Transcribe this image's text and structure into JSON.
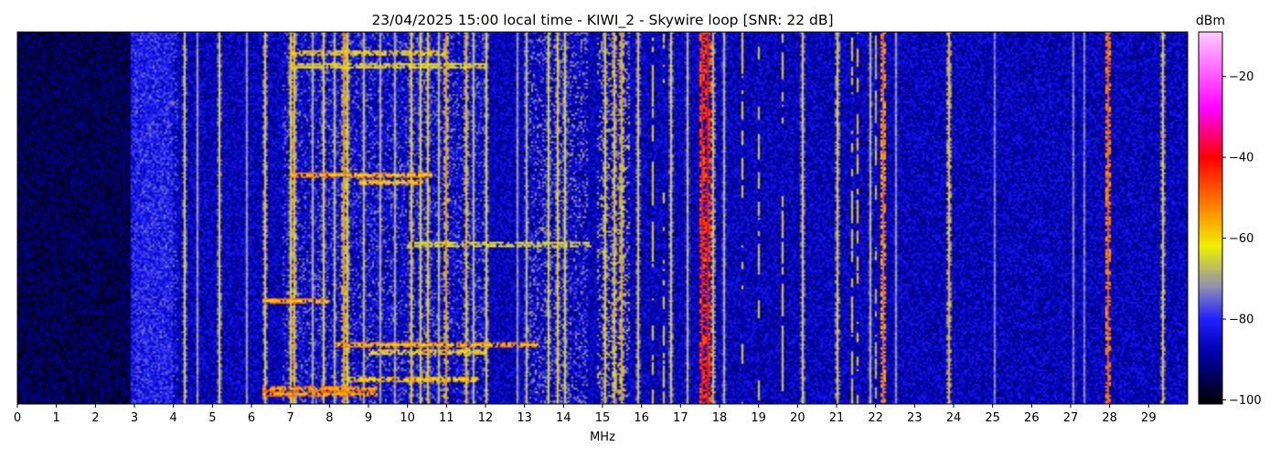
{
  "chart_data": {
    "type": "heatmap",
    "title": "23/04/2025 15:00 local time - KIWI_2 - Skywire loop [SNR: 22 dB]",
    "xlabel": "MHz",
    "ylabel": "",
    "xlim": [
      0,
      30
    ],
    "x_ticks": [
      0,
      1,
      2,
      3,
      4,
      5,
      6,
      7,
      8,
      9,
      10,
      11,
      12,
      13,
      14,
      15,
      16,
      17,
      18,
      19,
      20,
      21,
      22,
      23,
      24,
      25,
      26,
      27,
      28,
      29
    ],
    "x_tick_labels": [
      "0",
      "1",
      "2",
      "3",
      "4",
      "5",
      "6",
      "7",
      "8",
      "9",
      "10",
      "11",
      "12",
      "13",
      "14",
      "15",
      "16",
      "17",
      "18",
      "19",
      "20",
      "21",
      "22",
      "23",
      "24",
      "25",
      "26",
      "27",
      "28",
      "29"
    ],
    "colorbar": {
      "label": "dBm",
      "range": [
        -101,
        -9
      ],
      "ticks": [
        -100,
        -80,
        -60,
        -40,
        -20
      ],
      "tick_labels": [
        "−100",
        "−80",
        "−60",
        "−40",
        "−20"
      ],
      "colormap_stops": [
        {
          "value": -101,
          "color": "#000000"
        },
        {
          "value": -88,
          "color": "#0000b0"
        },
        {
          "value": -80,
          "color": "#2020ff"
        },
        {
          "value": -72,
          "color": "#9090b0"
        },
        {
          "value": -62,
          "color": "#f0f000"
        },
        {
          "value": -52,
          "color": "#ff8000"
        },
        {
          "value": -40,
          "color": "#ff0000"
        },
        {
          "value": -28,
          "color": "#ff00ff"
        },
        {
          "value": -9,
          "color": "#ffccff"
        }
      ]
    },
    "background_levels": [
      {
        "from": 0,
        "to": 2.9,
        "dbm": -95
      },
      {
        "from": 2.9,
        "to": 4.0,
        "dbm": -82
      },
      {
        "from": 4.0,
        "to": 30,
        "dbm": -87
      }
    ],
    "continuous_signals_mhz": [
      {
        "x": 4.3,
        "dbm": -62
      },
      {
        "x": 4.6,
        "dbm": -70
      },
      {
        "x": 5.2,
        "dbm": -62
      },
      {
        "x": 5.9,
        "dbm": -70
      },
      {
        "x": 6.35,
        "dbm": -60
      },
      {
        "x": 7.0,
        "dbm": -60
      },
      {
        "x": 7.1,
        "dbm": -58
      },
      {
        "x": 7.55,
        "dbm": -68
      },
      {
        "x": 7.85,
        "dbm": -62
      },
      {
        "x": 8.15,
        "dbm": -66
      },
      {
        "x": 8.35,
        "dbm": -55
      },
      {
        "x": 8.45,
        "dbm": -60
      },
      {
        "x": 8.9,
        "dbm": -66
      },
      {
        "x": 9.3,
        "dbm": -68
      },
      {
        "x": 9.7,
        "dbm": -68
      },
      {
        "x": 10.1,
        "dbm": -60
      },
      {
        "x": 10.35,
        "dbm": -62
      },
      {
        "x": 10.5,
        "dbm": -60
      },
      {
        "x": 10.8,
        "dbm": -66
      },
      {
        "x": 11.0,
        "dbm": -55
      },
      {
        "x": 11.5,
        "dbm": -58
      },
      {
        "x": 11.7,
        "dbm": -66
      },
      {
        "x": 12.0,
        "dbm": -62
      },
      {
        "x": 12.8,
        "dbm": -70
      },
      {
        "x": 13.05,
        "dbm": -66
      },
      {
        "x": 13.6,
        "dbm": -62
      },
      {
        "x": 13.85,
        "dbm": -60
      },
      {
        "x": 14.05,
        "dbm": -62
      },
      {
        "x": 15.05,
        "dbm": -60
      },
      {
        "x": 15.3,
        "dbm": -58
      },
      {
        "x": 15.5,
        "dbm": -56
      },
      {
        "x": 15.9,
        "dbm": -62
      },
      {
        "x": 16.75,
        "dbm": -62
      },
      {
        "x": 17.2,
        "dbm": -66
      },
      {
        "x": 17.55,
        "dbm": -42
      },
      {
        "x": 17.7,
        "dbm": -40
      },
      {
        "x": 17.85,
        "dbm": -58
      },
      {
        "x": 18.1,
        "dbm": -66
      },
      {
        "x": 20.15,
        "dbm": -62
      },
      {
        "x": 21.0,
        "dbm": -60
      },
      {
        "x": 21.85,
        "dbm": -66
      },
      {
        "x": 22.2,
        "dbm": -50
      },
      {
        "x": 22.5,
        "dbm": -70
      },
      {
        "x": 23.9,
        "dbm": -58
      },
      {
        "x": 25.05,
        "dbm": -72
      },
      {
        "x": 27.05,
        "dbm": -72
      },
      {
        "x": 27.35,
        "dbm": -72
      },
      {
        "x": 27.95,
        "dbm": -48
      },
      {
        "x": 29.35,
        "dbm": -60
      }
    ],
    "intermittent_signals_mhz": [
      {
        "x": 16.3,
        "dbm": -62
      },
      {
        "x": 16.55,
        "dbm": -62
      },
      {
        "x": 18.6,
        "dbm": -62
      },
      {
        "x": 19.0,
        "dbm": -64
      },
      {
        "x": 21.4,
        "dbm": -62
      },
      {
        "x": 21.55,
        "dbm": -60
      },
      {
        "x": 22.0,
        "dbm": -66
      },
      {
        "x": 19.6,
        "dbm": -62
      }
    ],
    "noise_bands_mhz": [
      {
        "from": 3.0,
        "to": 4.1,
        "dbm": -78
      },
      {
        "from": 6.8,
        "to": 12.0,
        "dbm": -76
      },
      {
        "from": 13.0,
        "to": 14.6,
        "dbm": -74
      },
      {
        "from": 14.9,
        "to": 15.7,
        "dbm": -70
      }
    ],
    "horizontal_streaks": [
      {
        "from": 7.0,
        "to": 10.6,
        "row": 0.38,
        "dbm": -60
      },
      {
        "from": 8.8,
        "to": 10.4,
        "row": 0.4,
        "dbm": -62
      },
      {
        "from": 6.3,
        "to": 8.0,
        "row": 0.72,
        "dbm": -60
      },
      {
        "from": 8.2,
        "to": 13.4,
        "row": 0.84,
        "dbm": -60
      },
      {
        "from": 9.0,
        "to": 12.0,
        "row": 0.86,
        "dbm": -66
      },
      {
        "from": 6.3,
        "to": 9.2,
        "row": 0.955,
        "dbm": -58
      },
      {
        "from": 6.3,
        "to": 9.2,
        "row": 0.97,
        "dbm": -58
      },
      {
        "from": 8.5,
        "to": 11.8,
        "row": 0.93,
        "dbm": -64
      },
      {
        "from": 7.0,
        "to": 12.0,
        "row": 0.09,
        "dbm": -68
      },
      {
        "from": 7.0,
        "to": 11.0,
        "row": 0.055,
        "dbm": -66
      },
      {
        "from": 10.0,
        "to": 14.7,
        "row": 0.57,
        "dbm": -70
      }
    ]
  }
}
